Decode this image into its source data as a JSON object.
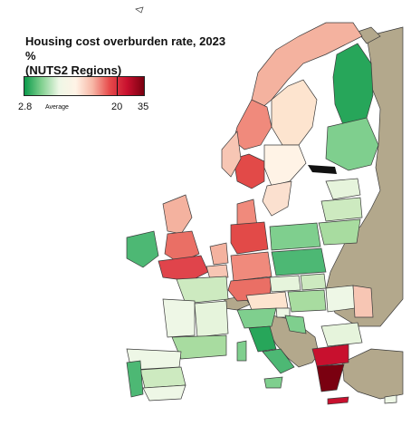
{
  "title": "Housing cost overburden rate, 2023",
  "unit": "%",
  "subtitle": "(NUTS2 Regions)",
  "legend": {
    "min_label": "2.8",
    "avg_label": "Average",
    "mark_label": "20",
    "max_label": "35",
    "stops": [
      "#0b9a4a",
      "#7fcf8e",
      "#eef7e6",
      "#fff3e6",
      "#f7b7a6",
      "#e74c4c",
      "#c8102e",
      "#7a0010"
    ]
  },
  "colors": {
    "non_eu": "#b3a88c",
    "border": "#3b3b3b",
    "sea": "#ffffff"
  }
}
